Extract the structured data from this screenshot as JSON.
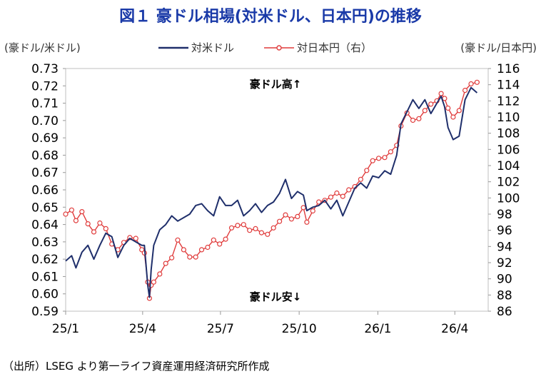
{
  "chart_data": {
    "type": "line",
    "title": "図１ 豪ドル相場(対米ドル、日本円)の推移",
    "left_axis_label": "(豪ドル/米ドル)",
    "right_axis_label": "(豪ドル/日本円)",
    "source": "（出所）LSEG より第一ライフ資産運用経済研究所作成",
    "annotation_high": "豪ドル高↑",
    "annotation_low": "豪ドル安↓",
    "x_tick_labels": [
      "25/1",
      "25/4",
      "25/7",
      "25/10",
      "26/1",
      "26/4"
    ],
    "left_ylim": [
      0.59,
      0.73
    ],
    "right_ylim": [
      86,
      116
    ],
    "left_ticks": [
      "0.59",
      "0.60",
      "0.61",
      "0.62",
      "0.63",
      "0.64",
      "0.65",
      "0.66",
      "0.67",
      "0.68",
      "0.69",
      "0.70",
      "0.71",
      "0.72",
      "0.73"
    ],
    "right_ticks": [
      "86",
      "88",
      "90",
      "92",
      "94",
      "96",
      "98",
      "100",
      "102",
      "104",
      "106",
      "108",
      "110",
      "112",
      "114",
      "116"
    ],
    "grid": false,
    "legend_position": "top-center",
    "series": [
      {
        "name": "対米ドル",
        "axis": "left",
        "color": "#1f2f6b",
        "points": [
          [
            "2025-01-01",
            0.619
          ],
          [
            "2025-01-08",
            0.622
          ],
          [
            "2025-01-13",
            0.615
          ],
          [
            "2025-01-20",
            0.624
          ],
          [
            "2025-01-27",
            0.628
          ],
          [
            "2025-02-03",
            0.62
          ],
          [
            "2025-02-10",
            0.628
          ],
          [
            "2025-02-17",
            0.635
          ],
          [
            "2025-02-24",
            0.633
          ],
          [
            "2025-03-03",
            0.621
          ],
          [
            "2025-03-10",
            0.628
          ],
          [
            "2025-03-17",
            0.632
          ],
          [
            "2025-03-24",
            0.63
          ],
          [
            "2025-03-31",
            0.628
          ],
          [
            "2025-04-03",
            0.628
          ],
          [
            "2025-04-07",
            0.605
          ],
          [
            "2025-04-09",
            0.598
          ],
          [
            "2025-04-11",
            0.614
          ],
          [
            "2025-04-14",
            0.628
          ],
          [
            "2025-04-21",
            0.637
          ],
          [
            "2025-04-28",
            0.64
          ],
          [
            "2025-05-05",
            0.645
          ],
          [
            "2025-05-12",
            0.642
          ],
          [
            "2025-05-19",
            0.644
          ],
          [
            "2025-05-26",
            0.646
          ],
          [
            "2025-06-02",
            0.651
          ],
          [
            "2025-06-09",
            0.652
          ],
          [
            "2025-06-16",
            0.648
          ],
          [
            "2025-06-23",
            0.645
          ],
          [
            "2025-06-30",
            0.656
          ],
          [
            "2025-07-07",
            0.651
          ],
          [
            "2025-07-14",
            0.651
          ],
          [
            "2025-07-21",
            0.654
          ],
          [
            "2025-07-28",
            0.645
          ],
          [
            "2025-08-04",
            0.648
          ],
          [
            "2025-08-11",
            0.652
          ],
          [
            "2025-08-18",
            0.647
          ],
          [
            "2025-08-25",
            0.651
          ],
          [
            "2025-09-01",
            0.653
          ],
          [
            "2025-09-08",
            0.658
          ],
          [
            "2025-09-15",
            0.666
          ],
          [
            "2025-09-22",
            0.655
          ],
          [
            "2025-09-29",
            0.659
          ],
          [
            "2025-10-06",
            0.657
          ],
          [
            "2025-10-10",
            0.648
          ],
          [
            "2025-10-17",
            0.65
          ],
          [
            "2025-10-24",
            0.651
          ],
          [
            "2025-10-31",
            0.654
          ],
          [
            "2025-11-07",
            0.649
          ],
          [
            "2025-11-14",
            0.654
          ],
          [
            "2025-11-21",
            0.645
          ],
          [
            "2025-11-28",
            0.653
          ],
          [
            "2025-12-05",
            0.661
          ],
          [
            "2025-12-12",
            0.664
          ],
          [
            "2025-12-19",
            0.661
          ],
          [
            "2025-12-26",
            0.668
          ],
          [
            "2026-01-02",
            0.667
          ],
          [
            "2026-01-09",
            0.671
          ],
          [
            "2026-01-16",
            0.669
          ],
          [
            "2026-01-23",
            0.68
          ],
          [
            "2026-01-28",
            0.698
          ],
          [
            "2026-02-04",
            0.705
          ],
          [
            "2026-02-11",
            0.712
          ],
          [
            "2026-02-18",
            0.707
          ],
          [
            "2026-02-25",
            0.712
          ],
          [
            "2026-03-04",
            0.704
          ],
          [
            "2026-03-11",
            0.71
          ],
          [
            "2026-03-16",
            0.714
          ],
          [
            "2026-03-20",
            0.708
          ],
          [
            "2026-03-24",
            0.696
          ],
          [
            "2026-03-30",
            0.689
          ],
          [
            "2026-04-06",
            0.691
          ],
          [
            "2026-04-13",
            0.712
          ],
          [
            "2026-04-20",
            0.719
          ],
          [
            "2026-04-27",
            0.716
          ]
        ]
      },
      {
        "name": "対日本円（右）",
        "axis": "right",
        "color": "#e03c3c",
        "points": [
          [
            "2025-01-01",
            98.0
          ],
          [
            "2025-01-08",
            98.5
          ],
          [
            "2025-01-13",
            97.2
          ],
          [
            "2025-01-20",
            98.3
          ],
          [
            "2025-01-27",
            96.8
          ],
          [
            "2025-02-03",
            95.8
          ],
          [
            "2025-02-10",
            96.9
          ],
          [
            "2025-02-17",
            96.2
          ],
          [
            "2025-02-24",
            94.3
          ],
          [
            "2025-03-03",
            93.6
          ],
          [
            "2025-03-10",
            94.5
          ],
          [
            "2025-03-17",
            95.1
          ],
          [
            "2025-03-24",
            95.0
          ],
          [
            "2025-03-31",
            93.6
          ],
          [
            "2025-04-03",
            93.2
          ],
          [
            "2025-04-07",
            89.6
          ],
          [
            "2025-04-09",
            87.6
          ],
          [
            "2025-04-11",
            89.2
          ],
          [
            "2025-04-14",
            89.6
          ],
          [
            "2025-04-21",
            90.6
          ],
          [
            "2025-04-28",
            91.9
          ],
          [
            "2025-05-05",
            92.6
          ],
          [
            "2025-05-12",
            94.8
          ],
          [
            "2025-05-19",
            93.6
          ],
          [
            "2025-05-26",
            92.7
          ],
          [
            "2025-06-02",
            92.7
          ],
          [
            "2025-06-09",
            93.6
          ],
          [
            "2025-06-16",
            93.9
          ],
          [
            "2025-06-23",
            94.8
          ],
          [
            "2025-06-30",
            94.3
          ],
          [
            "2025-07-07",
            94.9
          ],
          [
            "2025-07-14",
            96.3
          ],
          [
            "2025-07-21",
            96.6
          ],
          [
            "2025-07-28",
            96.7
          ],
          [
            "2025-08-04",
            96.0
          ],
          [
            "2025-08-11",
            96.2
          ],
          [
            "2025-08-18",
            95.7
          ],
          [
            "2025-08-25",
            95.5
          ],
          [
            "2025-09-01",
            96.3
          ],
          [
            "2025-09-08",
            97.1
          ],
          [
            "2025-09-15",
            97.9
          ],
          [
            "2025-09-22",
            97.4
          ],
          [
            "2025-09-29",
            97.7
          ],
          [
            "2025-10-06",
            98.8
          ],
          [
            "2025-10-10",
            97.0
          ],
          [
            "2025-10-17",
            98.4
          ],
          [
            "2025-10-24",
            99.5
          ],
          [
            "2025-10-31",
            99.7
          ],
          [
            "2025-11-07",
            100.1
          ],
          [
            "2025-11-14",
            100.6
          ],
          [
            "2025-11-21",
            100.2
          ],
          [
            "2025-11-28",
            101.0
          ],
          [
            "2025-12-05",
            101.4
          ],
          [
            "2025-12-12",
            102.3
          ],
          [
            "2025-12-19",
            103.4
          ],
          [
            "2025-12-26",
            104.6
          ],
          [
            "2026-01-02",
            104.9
          ],
          [
            "2026-01-09",
            105.0
          ],
          [
            "2026-01-16",
            105.7
          ],
          [
            "2026-01-23",
            106.5
          ],
          [
            "2026-01-28",
            108.9
          ],
          [
            "2026-02-04",
            110.5
          ],
          [
            "2026-02-11",
            109.6
          ],
          [
            "2026-02-18",
            109.8
          ],
          [
            "2026-02-25",
            110.8
          ],
          [
            "2026-03-04",
            111.6
          ],
          [
            "2026-03-11",
            112.0
          ],
          [
            "2026-03-16",
            112.9
          ],
          [
            "2026-03-20",
            112.3
          ],
          [
            "2026-03-24",
            111.1
          ],
          [
            "2026-03-30",
            110.0
          ],
          [
            "2026-04-06",
            110.8
          ],
          [
            "2026-04-13",
            113.3
          ],
          [
            "2026-04-20",
            114.1
          ],
          [
            "2026-04-27",
            114.3
          ]
        ]
      }
    ]
  }
}
